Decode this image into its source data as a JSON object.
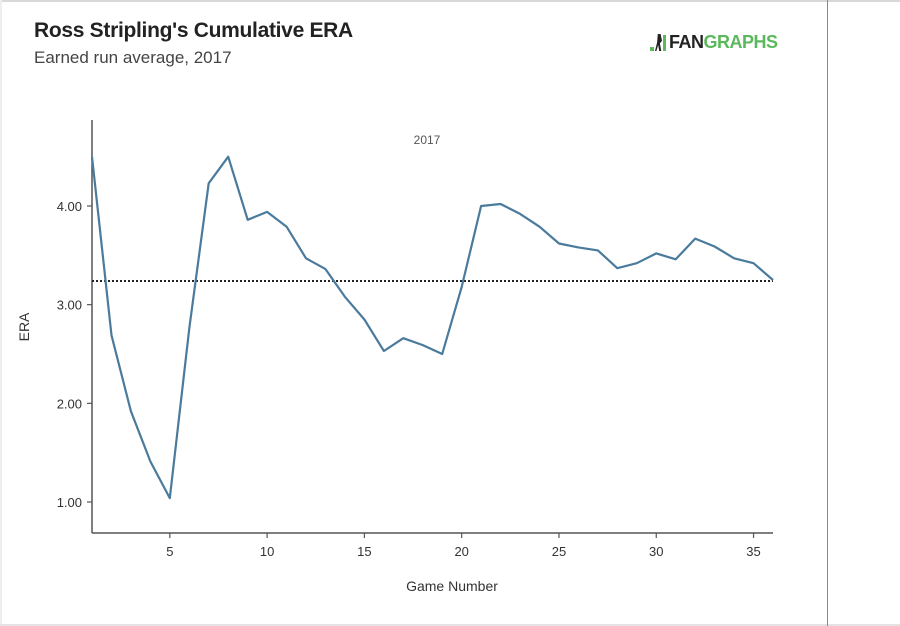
{
  "header": {
    "title": "Ross Stripling's Cumulative ERA",
    "subtitle": "Earned run average, 2017",
    "logo_text_dark": "FAN",
    "logo_text_green": "GRAPHS",
    "logo_name": "FANGRAPHS"
  },
  "colors": {
    "line": "#4a7a9c",
    "reference_line": "#222222",
    "axis": "#555555",
    "logo_green": "#5cb85c"
  },
  "chart_data": {
    "type": "line",
    "title": "Ross Stripling's Cumulative ERA",
    "subtitle": "Earned run average, 2017",
    "xlabel": "Game Number",
    "ylabel": "ERA",
    "annotation": "2017",
    "xlim": [
      1,
      36
    ],
    "ylim": [
      0.7,
      4.85
    ],
    "xticks": [
      5,
      10,
      15,
      20,
      25,
      30,
      35
    ],
    "xtick_labels": [
      "5",
      "10",
      "15",
      "20",
      "25",
      "30",
      "35"
    ],
    "yticks": [
      1,
      2,
      3,
      4
    ],
    "ytick_labels": [
      "1.00",
      "2.00",
      "3.00",
      "4.00"
    ],
    "grid": false,
    "reference_line": {
      "y": 3.24,
      "style": "dotted"
    },
    "series": [
      {
        "name": "Cumulative ERA",
        "x": [
          1,
          2,
          3,
          4,
          5,
          6,
          7,
          8,
          9,
          10,
          11,
          12,
          13,
          14,
          15,
          16,
          17,
          18,
          19,
          20,
          21,
          22,
          23,
          24,
          25,
          26,
          27,
          28,
          29,
          30,
          31,
          32,
          33,
          34,
          35,
          36
        ],
        "values": [
          4.5,
          2.69,
          1.92,
          1.41,
          1.04,
          2.76,
          4.23,
          4.5,
          3.86,
          3.94,
          3.79,
          3.47,
          3.36,
          3.08,
          2.85,
          2.53,
          2.66,
          2.59,
          2.5,
          3.18,
          4.0,
          4.02,
          3.92,
          3.79,
          3.62,
          3.58,
          3.55,
          3.37,
          3.42,
          3.52,
          3.46,
          3.67,
          3.59,
          3.47,
          3.42,
          3.25
        ]
      }
    ]
  }
}
